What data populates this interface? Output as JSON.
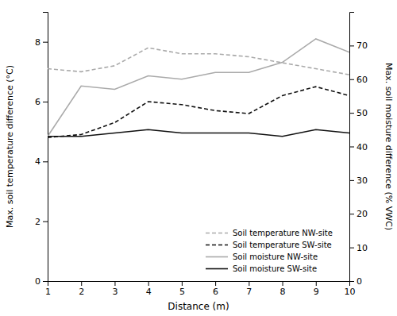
{
  "chart_data": {
    "type": "line",
    "xlabel": "Distance (m)",
    "ylabel": "Max. soil temperature difference (°C)",
    "y2label": "Max. soil moisture difference (% VWC)",
    "x": [
      1,
      2,
      3,
      4,
      5,
      6,
      7,
      8,
      9,
      10
    ],
    "xlim": [
      1,
      10
    ],
    "xticks": [
      1,
      2,
      3,
      4,
      5,
      6,
      7,
      8,
      9,
      10
    ],
    "ylim": [
      0,
      9
    ],
    "yticks": [
      0,
      2,
      4,
      6,
      8
    ],
    "y2lim": [
      0,
      80
    ],
    "y2ticks": [
      0,
      10,
      20,
      30,
      40,
      50,
      60,
      70
    ],
    "grid": false,
    "legend": "lower right",
    "series": [
      {
        "name": "Soil temperature NW-site",
        "color": "#aaaaaa",
        "line_style": "dashed",
        "axis": "y",
        "values": [
          7.1,
          7.0,
          7.2,
          7.8,
          7.6,
          7.6,
          7.5,
          7.3,
          7.1,
          6.9
        ]
      },
      {
        "name": "Soil temperature SW-site",
        "color": "#111111",
        "line_style": "dashed",
        "axis": "y",
        "values": [
          4.8,
          4.9,
          5.3,
          6.0,
          5.9,
          5.7,
          5.6,
          6.2,
          6.5,
          6.2
        ]
      },
      {
        "name": "Soil moisture NW-site",
        "color": "#aaaaaa",
        "line_style": "solid",
        "axis": "y2",
        "values": [
          43,
          58,
          57,
          61,
          60,
          62,
          62,
          65,
          72,
          68
        ]
      },
      {
        "name": "Soil moisture SW-site",
        "color": "#111111",
        "line_style": "solid",
        "axis": "y2",
        "values": [
          43,
          43,
          44,
          45,
          44,
          44,
          44,
          43,
          45,
          44
        ]
      }
    ]
  }
}
